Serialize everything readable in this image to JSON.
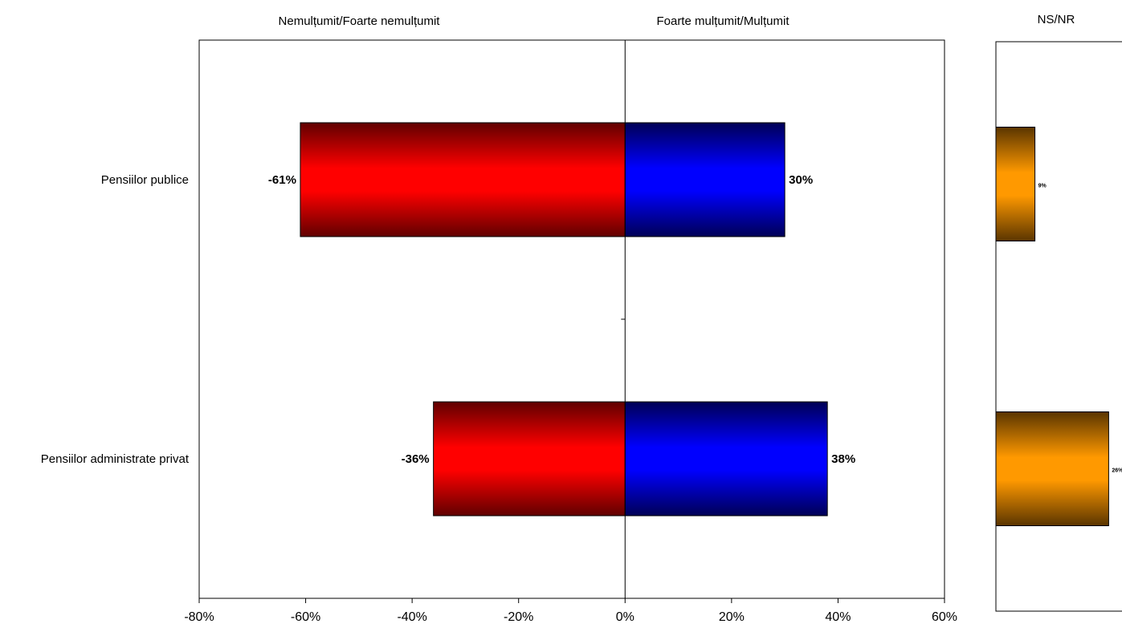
{
  "chart_data": [
    {
      "type": "bar",
      "orientation": "horizontal",
      "stacked": "diverging",
      "categories": [
        "Pensiilor publice",
        "Pensiilor administrate privat"
      ],
      "series": [
        {
          "name": "Nemulțumit/Foarte nemulțumit",
          "values": [
            -61,
            -36
          ],
          "labels": [
            "-61%",
            "-36%"
          ],
          "color": "#ff0000"
        },
        {
          "name": "Foarte mulțumit/Mulțumit",
          "values": [
            30,
            38
          ],
          "labels": [
            "30%",
            "38%"
          ],
          "color": "#0000ff"
        }
      ],
      "xlim": [
        -80,
        60
      ],
      "xticks": [
        -80,
        -60,
        -40,
        -20,
        0,
        20,
        40,
        60
      ],
      "xtick_labels": [
        "-80%",
        "-60%",
        "-40%",
        "-20%",
        "0%",
        "20%",
        "40%",
        "60%"
      ],
      "header_left": "Nemulțumit/Foarte nemulțumit",
      "header_right": "Foarte mulțumit/Mulțumit",
      "grid": false
    },
    {
      "type": "bar",
      "orientation": "horizontal",
      "title": "NS/NR",
      "categories": [
        "Pensiilor publice",
        "Pensiilor administrate privat"
      ],
      "series": [
        {
          "values": [
            9,
            26
          ],
          "labels": [
            "9%",
            "26%"
          ],
          "color": "#ff9900"
        }
      ],
      "xlim": [
        0,
        30
      ],
      "grid": false
    }
  ]
}
